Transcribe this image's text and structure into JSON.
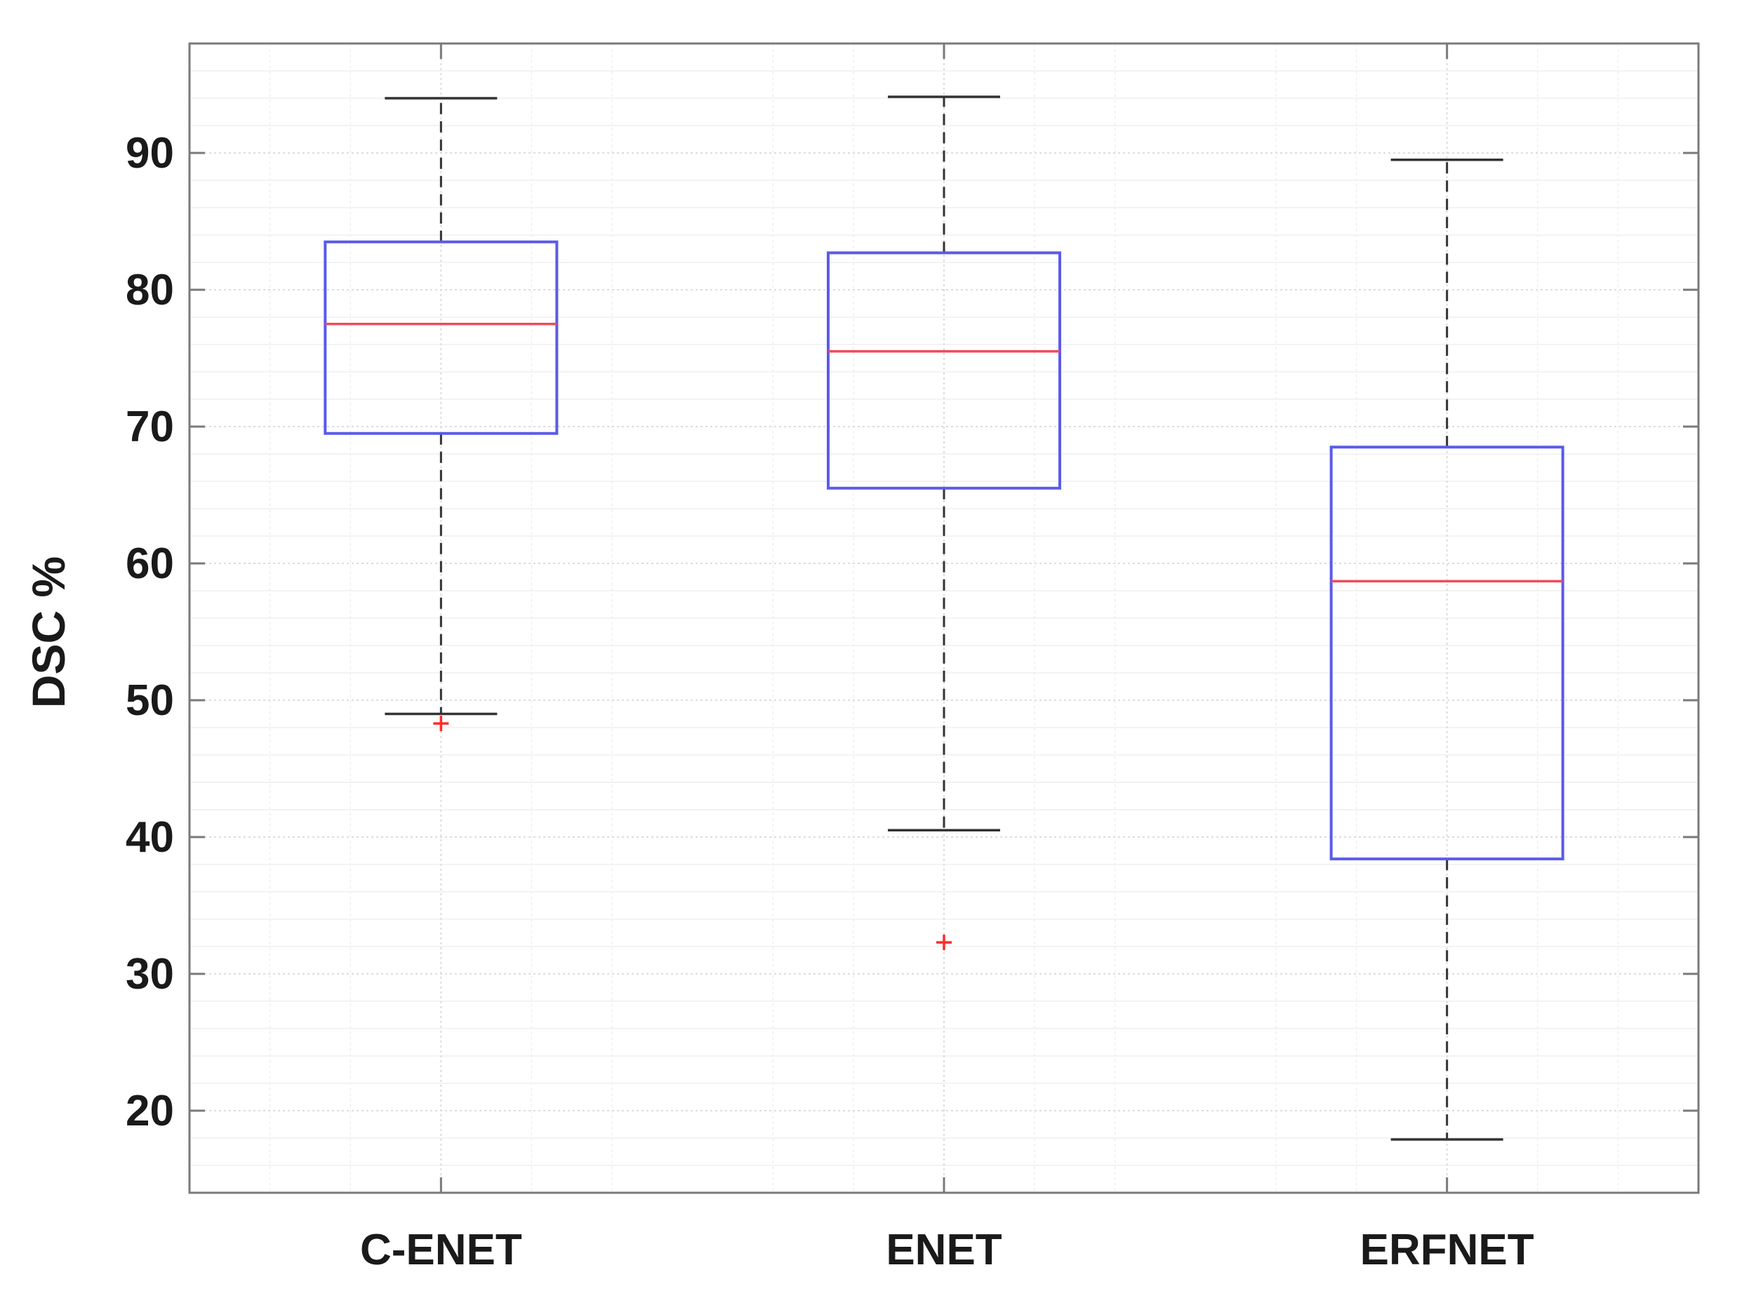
{
  "chart_data": {
    "type": "box",
    "title": "",
    "xlabel": "",
    "ylabel": "DSC %",
    "ylim": [
      14,
      98
    ],
    "yticks": [
      20,
      30,
      40,
      50,
      60,
      70,
      80,
      90
    ],
    "grid": true,
    "minor_grid": true,
    "categories": [
      "C-ENET",
      "ENET",
      "ERFNET"
    ],
    "boxes": [
      {
        "category": "C-ENET",
        "whisker_low": 49,
        "q1": 69.5,
        "median": 77.5,
        "q3": 83.5,
        "whisker_high": 94,
        "outliers": [
          48.3
        ]
      },
      {
        "category": "ENET",
        "whisker_low": 40.5,
        "q1": 65.5,
        "median": 75.5,
        "q3": 82.7,
        "whisker_high": 94.1,
        "outliers": [
          32.3
        ]
      },
      {
        "category": "ERFNET",
        "whisker_low": 17.9,
        "q1": 38.4,
        "median": 58.7,
        "q3": 68.5,
        "whisker_high": 89.5,
        "outliers": []
      }
    ],
    "colors": {
      "box": "#5b5bea",
      "median": "#ef4b5b",
      "outlier": "#ff2a2a",
      "whisker": "#333333",
      "axis": "#7a7a7a",
      "grid": "#dcdcdc",
      "minor_grid": "#efefef"
    }
  }
}
